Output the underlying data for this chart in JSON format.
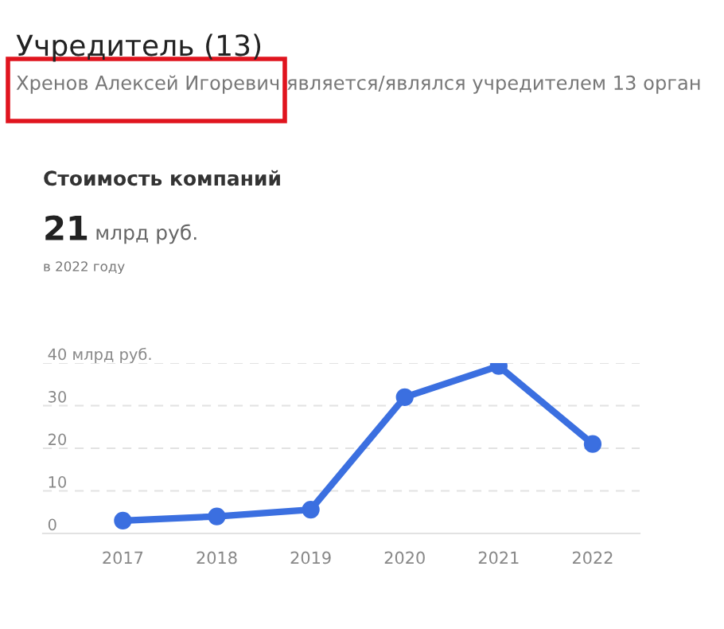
{
  "chart_data": {
    "type": "line",
    "title": "Стоимость компаний",
    "annotations": [
      "Учредитель (13)",
      "Хренов Алексей Игоревич является/являлся учредителем 13 орган",
      "21 млрд руб.",
      "в 2022 году"
    ],
    "categories": [
      "2017",
      "2018",
      "2019",
      "2020",
      "2021",
      "2022"
    ],
    "series": [
      {
        "color": "#3b6fe0",
        "values": [
          3,
          4,
          5.6,
          32,
          39.3,
          21
        ]
      }
    ],
    "ylim": [
      0,
      40
    ],
    "yticks": [
      0,
      10,
      20,
      30,
      {
        "value": 40,
        "label": "40 млрд руб."
      }
    ],
    "grid": "y",
    "marker": "circle",
    "line_style": "solid",
    "legend": false
  }
}
